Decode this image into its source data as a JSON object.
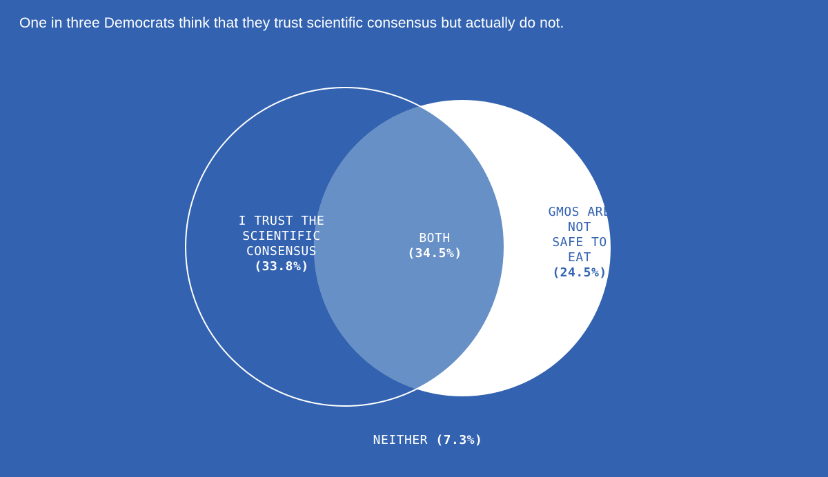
{
  "title": "One in three Democrats think that they trust scientific consensus but actually do not.",
  "colors": {
    "background": "#3262b0",
    "white": "#ffffff",
    "overlap": "#6790c6"
  },
  "sets": {
    "left": {
      "label_lines": [
        "I TRUST THE",
        "SCIENTIFIC",
        "CONSENSUS"
      ],
      "percent": "(33.8%)"
    },
    "both": {
      "label_lines": [
        "BOTH"
      ],
      "percent": "(34.5%)"
    },
    "right": {
      "label_lines": [
        "GMOS ARE",
        "NOT",
        "SAFE TO",
        "EAT"
      ],
      "percent": "(24.5%)"
    },
    "neither": {
      "label": "NEITHER",
      "percent": "(7.3%)"
    }
  }
}
